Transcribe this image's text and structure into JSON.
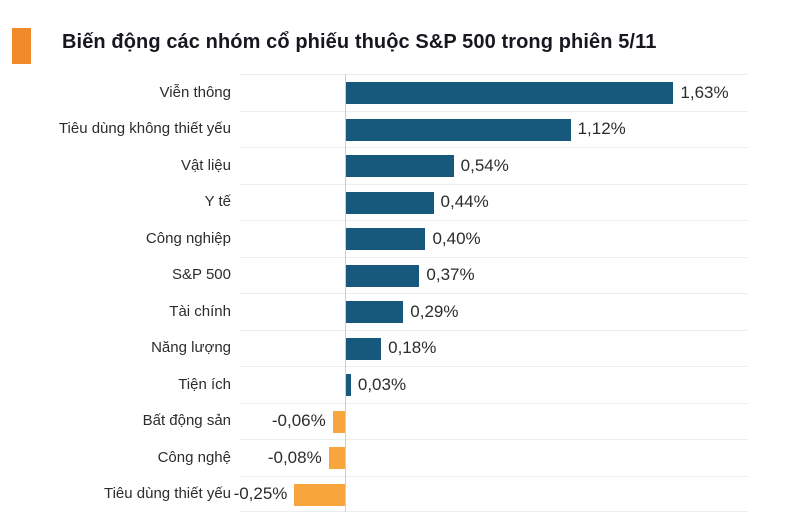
{
  "header": {
    "title": "Biến động các nhóm cổ phiếu thuộc S&P 500 trong phiên 5/11",
    "accent_color": "#F18A2B"
  },
  "chart_data": {
    "type": "bar",
    "orientation": "horizontal",
    "title": "Biến động các nhóm cổ phiếu thuộc S&P 500 trong phiên 5/11",
    "categories": [
      "Viễn thông",
      "Tiêu dùng không thiết yếu",
      "Vật liệu",
      "Y tế",
      "Công nghiệp",
      "S&P 500",
      "Tài chính",
      "Năng lượng",
      "Tiện ích",
      "Bất động sản",
      "Công nghệ",
      "Tiêu dùng thiết yếu"
    ],
    "values": [
      1.63,
      1.12,
      0.54,
      0.44,
      0.4,
      0.37,
      0.29,
      0.18,
      0.03,
      -0.06,
      -0.08,
      -0.25
    ],
    "value_labels": [
      "1,63%",
      "1,12%",
      "0,54%",
      "0,44%",
      "0,40%",
      "0,37%",
      "0,29%",
      "0,18%",
      "0,03%",
      "-0,06%",
      "-0,08%",
      "-0,25%"
    ],
    "positive_color": "#16597C",
    "negative_color": "#F9A53E",
    "xlim": [
      -0.52,
      2.0
    ],
    "grid": true,
    "gridline_color": "#ededed",
    "axis_color": "#cfcfcf",
    "legend": "none"
  }
}
